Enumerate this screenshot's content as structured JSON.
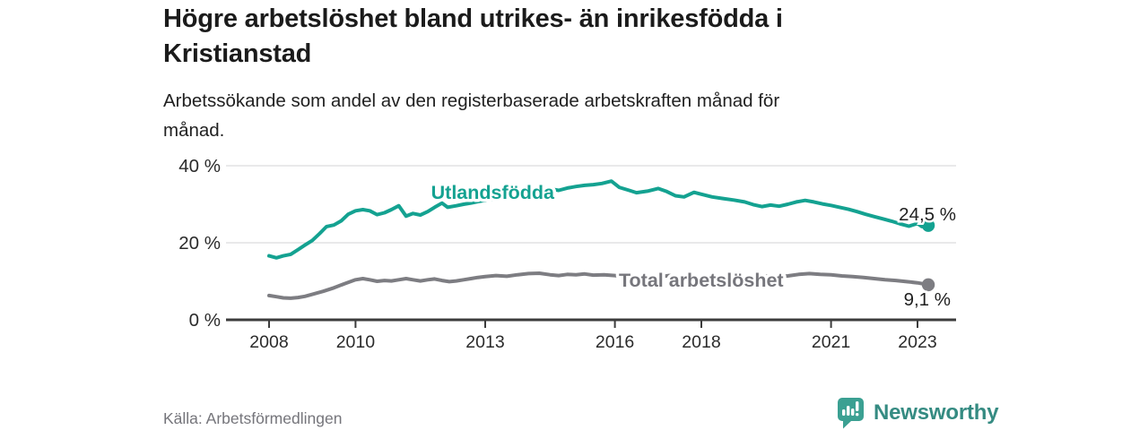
{
  "header": {
    "title_lines": [
      "Högre arbetslöshet bland utrikes- än inrikesfödda i",
      "Kristianstad"
    ],
    "subtitle_lines": [
      "Arbetssökande som andel av den registerbaserade arbetskraften månad för",
      "månad."
    ]
  },
  "footer": {
    "source": "Källa: Arbetsförmedlingen",
    "brand_name": "Newsworthy",
    "brand_icon": "speech-bubble-bar-chart-icon"
  },
  "colors": {
    "accent_teal": "#14a291",
    "line_gray": "#7d7d82",
    "label_gray": "#76767c",
    "value_label": "#1f1f1f",
    "axis_line": "#3c3c3c",
    "axis_text": "#2b2b2b",
    "gridline": "#dcdcde",
    "logo_bubble": "#3ba092",
    "logo_text": "#358b82"
  },
  "chart_data": {
    "type": "line",
    "title": "Högre arbetslöshet bland utrikes- än inrikesfödda i Kristianstad",
    "subtitle": "Arbetssökande som andel av den registerbaserade arbetskraften månad för månad.",
    "unit": "%",
    "grid": "horizontal-only",
    "legend_position": "inline-labels",
    "x_axis": {
      "range": [
        2007.0,
        2023.6
      ],
      "ticks": [
        2008,
        2010,
        2013,
        2016,
        2018,
        2021,
        2023
      ]
    },
    "y_axis": {
      "range": [
        0,
        43
      ],
      "ticks": [
        {
          "value": 0,
          "label": "0 %"
        },
        {
          "value": 20,
          "label": "20 %"
        },
        {
          "value": 40,
          "label": "40 %"
        }
      ]
    },
    "series": [
      {
        "name": "Utlandsfödda",
        "color": "#14a291",
        "end_value": 24.5,
        "end_label": "24,5 %",
        "points": [
          [
            2008.0,
            16.6
          ],
          [
            2008.17,
            16.1
          ],
          [
            2008.33,
            16.6
          ],
          [
            2008.5,
            17.0
          ],
          [
            2008.67,
            18.2
          ],
          [
            2008.83,
            19.4
          ],
          [
            2009.0,
            20.6
          ],
          [
            2009.17,
            22.4
          ],
          [
            2009.33,
            24.2
          ],
          [
            2009.5,
            24.6
          ],
          [
            2009.67,
            25.7
          ],
          [
            2009.83,
            27.4
          ],
          [
            2010.0,
            28.3
          ],
          [
            2010.17,
            28.6
          ],
          [
            2010.33,
            28.3
          ],
          [
            2010.5,
            27.3
          ],
          [
            2010.67,
            27.8
          ],
          [
            2010.83,
            28.6
          ],
          [
            2011.0,
            29.6
          ],
          [
            2011.17,
            26.9
          ],
          [
            2011.33,
            27.6
          ],
          [
            2011.5,
            27.2
          ],
          [
            2011.67,
            28.1
          ],
          [
            2011.83,
            29.2
          ],
          [
            2012.0,
            30.3
          ],
          [
            2012.13,
            29.2
          ],
          [
            2012.33,
            29.6
          ],
          [
            2012.5,
            30.0
          ],
          [
            2012.67,
            30.3
          ],
          [
            2012.83,
            30.7
          ],
          [
            2013.0,
            31.0
          ],
          [
            2013.25,
            31.4
          ],
          [
            2013.5,
            31.8
          ],
          [
            2013.75,
            32.2
          ],
          [
            2014.0,
            32.7
          ],
          [
            2014.25,
            33.2
          ],
          [
            2014.5,
            34.0
          ],
          [
            2014.7,
            33.6
          ],
          [
            2014.9,
            34.2
          ],
          [
            2015.1,
            34.6
          ],
          [
            2015.3,
            34.9
          ],
          [
            2015.5,
            35.1
          ],
          [
            2015.7,
            35.4
          ],
          [
            2015.92,
            36.0
          ],
          [
            2016.1,
            34.4
          ],
          [
            2016.33,
            33.6
          ],
          [
            2016.5,
            33.0
          ],
          [
            2016.75,
            33.4
          ],
          [
            2017.0,
            34.1
          ],
          [
            2017.2,
            33.3
          ],
          [
            2017.4,
            32.2
          ],
          [
            2017.6,
            31.9
          ],
          [
            2017.83,
            33.1
          ],
          [
            2018.0,
            32.6
          ],
          [
            2018.25,
            31.9
          ],
          [
            2018.5,
            31.5
          ],
          [
            2018.75,
            31.1
          ],
          [
            2019.0,
            30.6
          ],
          [
            2019.2,
            29.9
          ],
          [
            2019.4,
            29.4
          ],
          [
            2019.6,
            29.8
          ],
          [
            2019.8,
            29.5
          ],
          [
            2020.0,
            30.0
          ],
          [
            2020.2,
            30.6
          ],
          [
            2020.4,
            31.0
          ],
          [
            2020.6,
            30.6
          ],
          [
            2020.8,
            30.1
          ],
          [
            2021.0,
            29.7
          ],
          [
            2021.2,
            29.2
          ],
          [
            2021.4,
            28.7
          ],
          [
            2021.6,
            28.1
          ],
          [
            2021.8,
            27.4
          ],
          [
            2022.0,
            26.8
          ],
          [
            2022.2,
            26.2
          ],
          [
            2022.4,
            25.6
          ],
          [
            2022.6,
            24.9
          ],
          [
            2022.8,
            24.3
          ],
          [
            2023.0,
            25.0
          ],
          [
            2023.1,
            24.2
          ],
          [
            2023.25,
            24.5
          ]
        ]
      },
      {
        "name": "Total arbetslöshet",
        "color": "#7d7d82",
        "end_value": 9.1,
        "end_label": "9,1 %",
        "points": [
          [
            2008.0,
            6.3
          ],
          [
            2008.17,
            6.0
          ],
          [
            2008.33,
            5.7
          ],
          [
            2008.5,
            5.6
          ],
          [
            2008.67,
            5.8
          ],
          [
            2008.83,
            6.1
          ],
          [
            2009.0,
            6.6
          ],
          [
            2009.25,
            7.4
          ],
          [
            2009.5,
            8.3
          ],
          [
            2009.75,
            9.4
          ],
          [
            2010.0,
            10.4
          ],
          [
            2010.17,
            10.7
          ],
          [
            2010.33,
            10.4
          ],
          [
            2010.5,
            10.0
          ],
          [
            2010.67,
            10.2
          ],
          [
            2010.83,
            10.1
          ],
          [
            2011.0,
            10.4
          ],
          [
            2011.17,
            10.7
          ],
          [
            2011.33,
            10.4
          ],
          [
            2011.5,
            10.1
          ],
          [
            2011.67,
            10.4
          ],
          [
            2011.83,
            10.6
          ],
          [
            2012.0,
            10.2
          ],
          [
            2012.17,
            9.9
          ],
          [
            2012.33,
            10.1
          ],
          [
            2012.5,
            10.4
          ],
          [
            2012.67,
            10.7
          ],
          [
            2012.83,
            11.0
          ],
          [
            2013.0,
            11.2
          ],
          [
            2013.25,
            11.5
          ],
          [
            2013.5,
            11.3
          ],
          [
            2013.75,
            11.7
          ],
          [
            2014.0,
            12.0
          ],
          [
            2014.25,
            12.1
          ],
          [
            2014.5,
            11.7
          ],
          [
            2014.7,
            11.5
          ],
          [
            2014.9,
            11.8
          ],
          [
            2015.1,
            11.7
          ],
          [
            2015.3,
            11.9
          ],
          [
            2015.5,
            11.6
          ],
          [
            2015.75,
            11.7
          ],
          [
            2016.0,
            11.5
          ],
          [
            2016.25,
            11.2
          ],
          [
            2016.5,
            11.0
          ],
          [
            2016.75,
            10.8
          ],
          [
            2017.0,
            11.1
          ],
          [
            2017.25,
            11.5
          ],
          [
            2017.5,
            11.2
          ],
          [
            2017.75,
            10.9
          ],
          [
            2018.0,
            11.0
          ],
          [
            2018.25,
            10.8
          ],
          [
            2018.5,
            11.0
          ],
          [
            2018.75,
            11.2
          ],
          [
            2019.0,
            11.0
          ],
          [
            2019.25,
            11.1
          ],
          [
            2019.5,
            11.3
          ],
          [
            2019.75,
            11.2
          ],
          [
            2020.0,
            11.4
          ],
          [
            2020.25,
            11.8
          ],
          [
            2020.5,
            12.0
          ],
          [
            2020.75,
            11.8
          ],
          [
            2021.0,
            11.7
          ],
          [
            2021.25,
            11.4
          ],
          [
            2021.5,
            11.2
          ],
          [
            2021.75,
            11.0
          ],
          [
            2022.0,
            10.7
          ],
          [
            2022.25,
            10.4
          ],
          [
            2022.5,
            10.2
          ],
          [
            2022.75,
            9.9
          ],
          [
            2023.0,
            9.6
          ],
          [
            2023.25,
            9.1
          ]
        ]
      }
    ]
  }
}
